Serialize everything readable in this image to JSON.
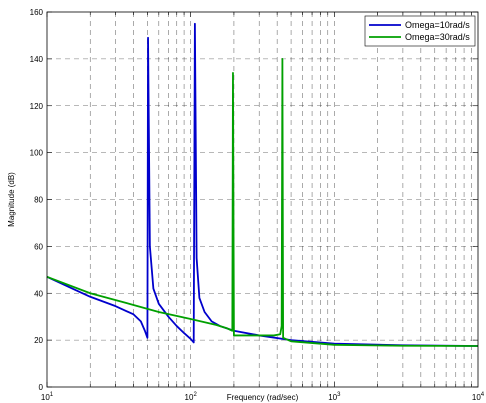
{
  "chart_data": {
    "type": "line",
    "title": "",
    "xlabel": "Frequency  (rad/sec)",
    "ylabel": "Magnitude (dB)",
    "xscale": "log",
    "xlim": [
      10,
      10000
    ],
    "ylim": [
      0,
      160
    ],
    "x_tick_labels": [
      {
        "base": "10",
        "exp": "1"
      },
      {
        "base": "10",
        "exp": "2"
      },
      {
        "base": "10",
        "exp": "3"
      },
      {
        "base": "10",
        "exp": "4"
      }
    ],
    "y_ticks": [
      0,
      20,
      40,
      60,
      80,
      100,
      120,
      140,
      160
    ],
    "grid": true,
    "legend_position": "top-right",
    "series": [
      {
        "name": "Omega=10rad/s",
        "color": "#0000cc",
        "points": [
          [
            10,
            47
          ],
          [
            15,
            42
          ],
          [
            20,
            38.5
          ],
          [
            30,
            34.5
          ],
          [
            40,
            31
          ],
          [
            45,
            28
          ],
          [
            48,
            24
          ],
          [
            50,
            21
          ],
          [
            50.5,
            149
          ],
          [
            52,
            60
          ],
          [
            55,
            42
          ],
          [
            60,
            35.5
          ],
          [
            70,
            30
          ],
          [
            80,
            26
          ],
          [
            90,
            23
          ],
          [
            100,
            20.5
          ],
          [
            105,
            19
          ],
          [
            107,
            155
          ],
          [
            110,
            55
          ],
          [
            115,
            38
          ],
          [
            125,
            32
          ],
          [
            140,
            28
          ],
          [
            160,
            26
          ],
          [
            200,
            24
          ],
          [
            300,
            22
          ],
          [
            500,
            20
          ],
          [
            1000,
            18.5
          ],
          [
            3000,
            17.8
          ],
          [
            10000,
            17.5
          ]
        ]
      },
      {
        "name": "Omega=30rad/s",
        "color": "#00a000",
        "points": [
          [
            10,
            47
          ],
          [
            20,
            40
          ],
          [
            40,
            35
          ],
          [
            60,
            32
          ],
          [
            100,
            29
          ],
          [
            150,
            26.5
          ],
          [
            180,
            25
          ],
          [
            195,
            24
          ],
          [
            197,
            134
          ],
          [
            200,
            22
          ],
          [
            250,
            22
          ],
          [
            300,
            22
          ],
          [
            380,
            22
          ],
          [
            420,
            22.5
          ],
          [
            430,
            26
          ],
          [
            435,
            140
          ],
          [
            440,
            21
          ],
          [
            500,
            19.5
          ],
          [
            1000,
            18
          ],
          [
            3000,
            17.6
          ],
          [
            10000,
            17.5
          ]
        ]
      }
    ]
  }
}
